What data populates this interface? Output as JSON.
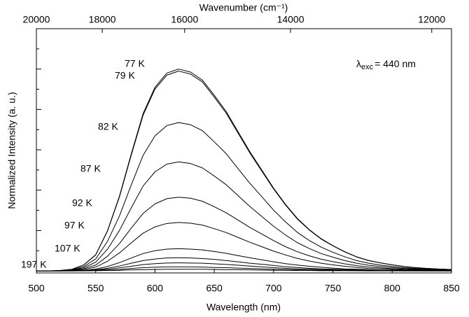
{
  "chart_data": {
    "type": "line",
    "xlabel": "Wavelength (nm)",
    "ylabel": "Normalized Intensity (a. u.)",
    "x2label": "Wavenumber (cm⁻¹)",
    "annotation": {
      "symbol": "λ",
      "subscript": "exc",
      "text": "= 440 nm"
    },
    "xlim": [
      500,
      850
    ],
    "xticks": [
      500,
      550,
      600,
      650,
      700,
      750,
      800,
      850
    ],
    "x2lim": [
      20000,
      11765
    ],
    "x2ticks": [
      20000,
      18000,
      16000,
      14000,
      12000
    ],
    "ylim": [
      -0.01,
      1.2
    ],
    "yticks": [
      0,
      0.1,
      0.2,
      0.3,
      0.4,
      0.5,
      0.6,
      0.7,
      0.8,
      0.9,
      1.0,
      1.1
    ],
    "x": [
      500,
      510,
      520,
      530,
      540,
      550,
      560,
      570,
      580,
      590,
      600,
      610,
      620,
      630,
      640,
      650,
      660,
      670,
      680,
      690,
      700,
      710,
      720,
      730,
      740,
      750,
      760,
      770,
      780,
      790,
      800,
      810,
      820,
      830,
      840,
      850
    ],
    "series": [
      {
        "name": "77 K",
        "color": "#000000",
        "values": [
          0,
          0,
          0.002,
          0.008,
          0.03,
          0.08,
          0.2,
          0.37,
          0.58,
          0.78,
          0.91,
          0.98,
          1.0,
          0.985,
          0.945,
          0.87,
          0.79,
          0.69,
          0.59,
          0.5,
          0.41,
          0.33,
          0.26,
          0.205,
          0.16,
          0.125,
          0.095,
          0.07,
          0.052,
          0.04,
          0.03,
          0.022,
          0.016,
          0.012,
          0.009,
          0.007
        ]
      },
      {
        "name": "79 K",
        "color": "#000000",
        "values": [
          0,
          0,
          0.002,
          0.008,
          0.03,
          0.079,
          0.198,
          0.366,
          0.574,
          0.772,
          0.901,
          0.97,
          0.99,
          0.975,
          0.936,
          0.861,
          0.782,
          0.683,
          0.584,
          0.495,
          0.406,
          0.327,
          0.257,
          0.203,
          0.158,
          0.124,
          0.094,
          0.069,
          0.051,
          0.04,
          0.03,
          0.022,
          0.016,
          0.012,
          0.009,
          0.007
        ]
      },
      {
        "name": "82 K",
        "color": "#000000",
        "values": [
          0,
          0,
          0.001,
          0.006,
          0.022,
          0.059,
          0.147,
          0.272,
          0.426,
          0.573,
          0.669,
          0.72,
          0.735,
          0.724,
          0.695,
          0.639,
          0.581,
          0.507,
          0.434,
          0.368,
          0.301,
          0.243,
          0.191,
          0.151,
          0.118,
          0.092,
          0.07,
          0.051,
          0.038,
          0.029,
          0.022,
          0.016,
          0.012,
          0.009,
          0.007,
          0.005
        ]
      },
      {
        "name": "87 K",
        "color": "#000000",
        "values": [
          0,
          0,
          0.001,
          0.004,
          0.016,
          0.043,
          0.108,
          0.2,
          0.313,
          0.421,
          0.491,
          0.529,
          0.54,
          0.532,
          0.51,
          0.47,
          0.427,
          0.373,
          0.319,
          0.27,
          0.221,
          0.178,
          0.14,
          0.111,
          0.086,
          0.068,
          0.051,
          0.038,
          0.028,
          0.022,
          0.016,
          0.012,
          0.009,
          0.006,
          0.005,
          0.004
        ]
      },
      {
        "name": "92 K",
        "color": "#000000",
        "values": [
          0,
          0,
          0.001,
          0.003,
          0.011,
          0.029,
          0.073,
          0.135,
          0.212,
          0.285,
          0.332,
          0.358,
          0.365,
          0.36,
          0.345,
          0.318,
          0.288,
          0.252,
          0.215,
          0.183,
          0.15,
          0.12,
          0.095,
          0.075,
          0.058,
          0.046,
          0.035,
          0.026,
          0.019,
          0.015,
          0.011,
          0.008,
          0.006,
          0.004,
          0.003,
          0.003
        ]
      },
      {
        "name": "97 K",
        "color": "#000000",
        "values": [
          0,
          0,
          0,
          0.002,
          0.007,
          0.019,
          0.048,
          0.089,
          0.139,
          0.187,
          0.218,
          0.235,
          0.24,
          0.236,
          0.227,
          0.209,
          0.19,
          0.166,
          0.142,
          0.12,
          0.098,
          0.079,
          0.062,
          0.049,
          0.038,
          0.03,
          0.023,
          0.017,
          0.012,
          0.01,
          0.007,
          0.005,
          0.004,
          0.003,
          0.002,
          0.002
        ]
      },
      {
        "name": "107 K",
        "color": "#000000",
        "values": [
          0,
          0,
          0,
          0.001,
          0.003,
          0.009,
          0.022,
          0.041,
          0.064,
          0.086,
          0.1,
          0.108,
          0.11,
          0.108,
          0.104,
          0.096,
          0.087,
          0.076,
          0.065,
          0.055,
          0.045,
          0.036,
          0.029,
          0.023,
          0.018,
          0.014,
          0.01,
          0.008,
          0.006,
          0.004,
          0.003,
          0.002,
          0.002,
          0.001,
          0.001,
          0.001
        ]
      },
      {
        "color": "#000000",
        "values": [
          0,
          0,
          0,
          0.001,
          0.002,
          0.005,
          0.013,
          0.024,
          0.038,
          0.051,
          0.059,
          0.064,
          0.065,
          0.064,
          0.061,
          0.057,
          0.051,
          0.045,
          0.038,
          0.033,
          0.027,
          0.021,
          0.017,
          0.013,
          0.01,
          0.008,
          0.006,
          0.005,
          0.003,
          0.003,
          0.002,
          0.001,
          0.001,
          0.001,
          0.001,
          0
        ]
      },
      {
        "color": "#000000",
        "values": [
          0,
          0,
          0,
          0,
          0.001,
          0.003,
          0.008,
          0.015,
          0.023,
          0.031,
          0.036,
          0.039,
          0.04,
          0.039,
          0.038,
          0.035,
          0.032,
          0.028,
          0.024,
          0.02,
          0.016,
          0.013,
          0.01,
          0.008,
          0.006,
          0.005,
          0.004,
          0.003,
          0.002,
          0.002,
          0.001,
          0.001,
          0.001,
          0,
          0,
          0
        ]
      },
      {
        "color": "#000000",
        "values": [
          0,
          0,
          0,
          0,
          0.001,
          0.002,
          0.004,
          0.007,
          0.012,
          0.016,
          0.018,
          0.02,
          0.02,
          0.02,
          0.019,
          0.017,
          0.016,
          0.014,
          0.012,
          0.01,
          0.008,
          0.007,
          0.005,
          0.004,
          0.003,
          0.003,
          0.002,
          0.001,
          0.001,
          0.001,
          0.001,
          0,
          0,
          0,
          0,
          0
        ]
      },
      {
        "name": "197 K",
        "color": "#000000",
        "values": [
          0,
          0,
          0,
          0,
          0,
          0.001,
          0.002,
          0.003,
          0.005,
          0.006,
          0.007,
          0.008,
          0.008,
          0.008,
          0.008,
          0.007,
          0.006,
          0.006,
          0.005,
          0.004,
          0.003,
          0.003,
          0.002,
          0.002,
          0.001,
          0.001,
          0.001,
          0.001,
          0,
          0,
          0,
          0,
          0,
          0,
          0,
          0
        ]
      }
    ]
  }
}
